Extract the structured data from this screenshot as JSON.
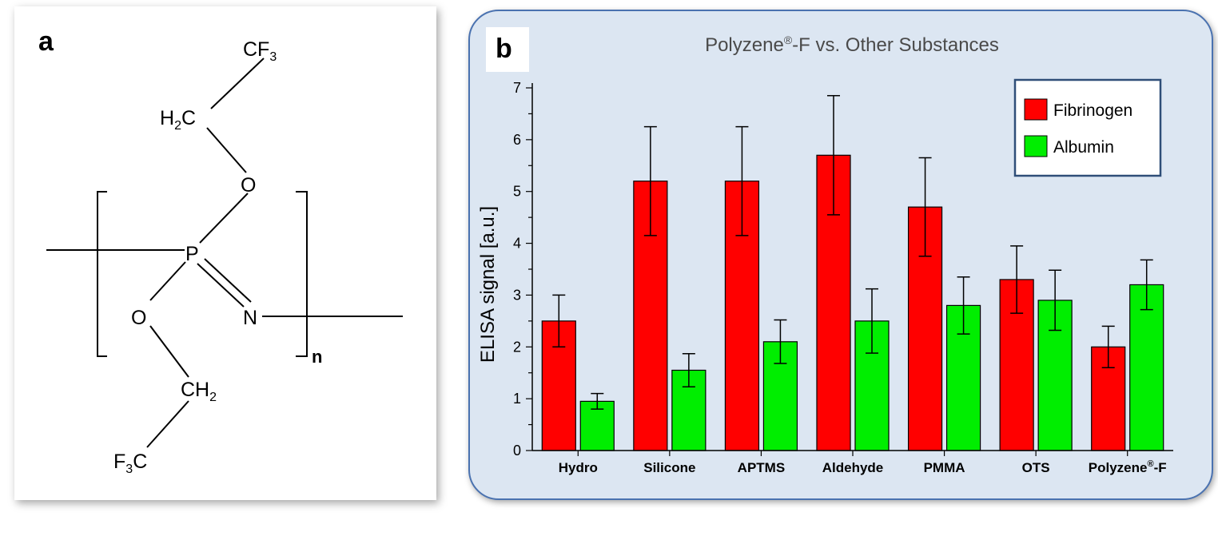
{
  "panel_a": {
    "label": "a",
    "chem": {
      "cf3_top": [
        "CF",
        "3"
      ],
      "h2c": [
        "H",
        "2",
        "C"
      ],
      "o_top": "O",
      "p": "P",
      "o_bottom": "O",
      "n": "N",
      "ch2": [
        "CH",
        "2"
      ],
      "f3c": [
        "F",
        "3",
        "C"
      ],
      "subscript_n": "n"
    }
  },
  "panel_b": {
    "label": "b"
  },
  "colors": {
    "fibrinogen": "#ff0000",
    "albumin": "#00ee00",
    "panel_bg": "#dce6f2",
    "panel_border": "#4a72b0"
  },
  "chart_data": {
    "type": "bar",
    "title_parts": [
      "Polyzene",
      "®",
      "-F vs. Other Substances"
    ],
    "ylabel": "ELISA signal [a.u.]",
    "xlabel": "",
    "ylim": [
      0,
      7
    ],
    "yticks": [
      0,
      1,
      2,
      3,
      4,
      5,
      6,
      7
    ],
    "categories": [
      "Hydro",
      "Silicone",
      "APTMS",
      "Aldehyde",
      "PMMA",
      "OTS",
      "Polyzene®-F"
    ],
    "last_category_parts": [
      "Polyzene",
      "®",
      "-F"
    ],
    "series": [
      {
        "name": "Fibrinogen",
        "values": [
          2.5,
          5.2,
          5.2,
          5.7,
          4.7,
          3.3,
          2.0
        ],
        "errors": [
          0.5,
          1.05,
          1.05,
          1.15,
          0.95,
          0.65,
          0.4
        ]
      },
      {
        "name": "Albumin",
        "values": [
          0.95,
          1.55,
          2.1,
          2.5,
          2.8,
          2.9,
          3.2
        ],
        "errors": [
          0.15,
          0.32,
          0.42,
          0.62,
          0.55,
          0.58,
          0.48
        ]
      }
    ],
    "legend": {
      "position": "top-right",
      "entries": [
        "Fibrinogen",
        "Albumin"
      ]
    },
    "grid": false
  }
}
